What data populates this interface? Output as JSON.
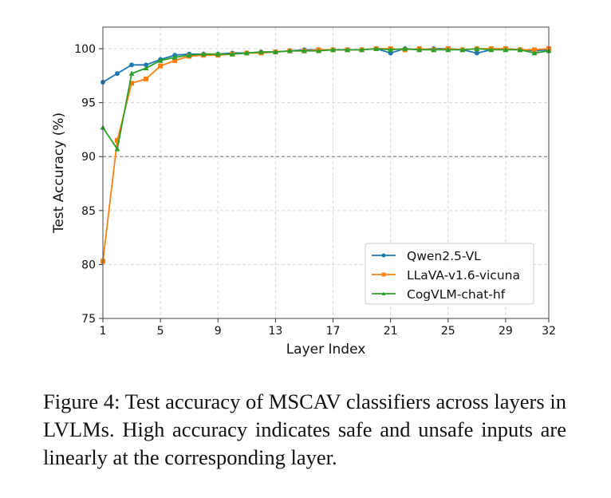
{
  "chart_data": {
    "type": "line",
    "title": "",
    "xlabel": "Layer Index",
    "ylabel": "Test Accuracy (%)",
    "xlim": [
      1,
      32
    ],
    "ylim": [
      75,
      102
    ],
    "xticks": [
      1,
      5,
      9,
      13,
      17,
      21,
      25,
      29,
      32
    ],
    "yticks": [
      75,
      80,
      85,
      90,
      95,
      100
    ],
    "grid": true,
    "reference_line": {
      "y": 90,
      "style": "dashed",
      "color": "#888888"
    },
    "legend_placement": "lower-right",
    "x": [
      1,
      2,
      3,
      4,
      5,
      6,
      7,
      8,
      9,
      10,
      11,
      12,
      13,
      14,
      15,
      16,
      17,
      18,
      19,
      20,
      21,
      22,
      23,
      24,
      25,
      26,
      27,
      28,
      29,
      30,
      31,
      32
    ],
    "series": [
      {
        "name": "Qwen2.5-VL",
        "color": "#1f77b4",
        "marker": "circle",
        "values": [
          96.9,
          97.7,
          98.5,
          98.5,
          99.0,
          99.4,
          99.5,
          99.5,
          99.5,
          99.6,
          99.6,
          99.7,
          99.7,
          99.8,
          99.9,
          99.9,
          99.9,
          99.9,
          99.9,
          100.0,
          99.6,
          100.0,
          99.9,
          100.0,
          100.0,
          99.9,
          99.6,
          99.9,
          100.0,
          99.9,
          99.8,
          99.9
        ]
      },
      {
        "name": "LLaVA-v1.6-vicuna",
        "color": "#ff7f0e",
        "marker": "square",
        "values": [
          80.3,
          91.5,
          96.8,
          97.2,
          98.4,
          98.9,
          99.3,
          99.4,
          99.4,
          99.5,
          99.6,
          99.6,
          99.7,
          99.8,
          99.8,
          99.9,
          99.9,
          99.9,
          99.9,
          100.0,
          100.0,
          99.9,
          100.0,
          99.9,
          100.0,
          99.9,
          100.0,
          100.0,
          100.0,
          99.9,
          99.9,
          100.0
        ]
      },
      {
        "name": "CogVLM-chat-hf",
        "color": "#2ca02c",
        "marker": "triangle",
        "values": [
          92.7,
          90.7,
          97.7,
          98.2,
          98.9,
          99.2,
          99.4,
          99.5,
          99.5,
          99.5,
          99.6,
          99.7,
          99.7,
          99.8,
          99.8,
          99.8,
          99.9,
          99.9,
          99.9,
          100.0,
          99.9,
          100.0,
          99.9,
          99.9,
          99.9,
          99.9,
          100.0,
          99.9,
          99.9,
          99.9,
          99.6,
          99.8
        ]
      }
    ]
  },
  "caption": {
    "label": "Figure 4:",
    "text": " Test accuracy of MSCAV classifiers across layers in LVLMs.  High accuracy indicates safe and unsafe inputs are linearly at the corresponding layer."
  }
}
